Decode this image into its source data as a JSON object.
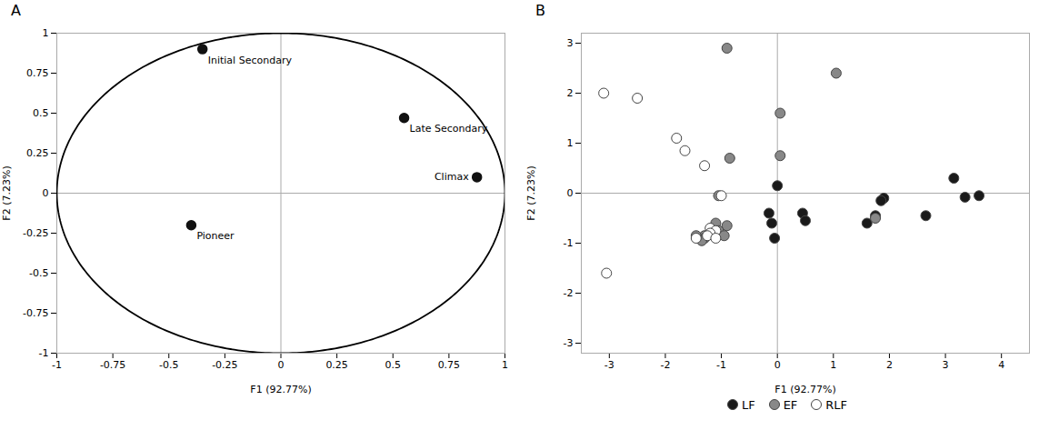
{
  "chart_data": [
    {
      "type": "correlation",
      "title": "A",
      "xlabel": "F1 (92.77%)",
      "ylabel": "F2 (7.23%)",
      "xlim": [
        -1,
        1
      ],
      "ylim": [
        -1,
        1
      ],
      "xticks": [
        -1,
        -0.75,
        -0.5,
        -0.25,
        0,
        0.25,
        0.5,
        0.75,
        1
      ],
      "yticks": [
        -1,
        -0.75,
        -0.5,
        -0.25,
        0,
        0.25,
        0.5,
        0.75,
        1
      ],
      "x": [
        -0.35,
        0.55,
        0.875,
        -0.4
      ],
      "values": [
        0.9,
        0.47,
        0.1,
        -0.2
      ],
      "labels": [
        "Initial Secondary",
        "Late Secondary",
        "Climax",
        "Pioneer"
      ],
      "color": "#111111",
      "grid": false
    },
    {
      "type": "scatter",
      "title": "B",
      "xlabel": "F1 (92.77%)",
      "ylabel": "F2 (7.23%)",
      "xlim": [
        -3.5,
        4.5
      ],
      "ylim": [
        -3.2,
        3.2
      ],
      "xticks": [
        -3,
        -2,
        -1,
        0,
        1,
        2,
        3,
        4
      ],
      "yticks": [
        -3,
        -2,
        -1,
        0,
        1,
        2,
        3
      ],
      "series": [
        {
          "name": "LF",
          "color": "#1a1a1a",
          "x": [
            0.0,
            3.15,
            3.35,
            3.6,
            1.9,
            1.85,
            1.75,
            2.65,
            1.6,
            -0.15,
            -0.1,
            -0.05,
            0.45,
            0.5
          ],
          "values": [
            0.15,
            0.3,
            -0.08,
            -0.05,
            -0.1,
            -0.15,
            -0.45,
            -0.45,
            -0.6,
            -0.4,
            -0.6,
            -0.9,
            -0.4,
            -0.55
          ]
        },
        {
          "name": "EF",
          "color": "#888888",
          "x": [
            -0.9,
            0.05,
            -0.85,
            -1.05,
            -1.1,
            -0.9,
            -1.05,
            -1.15,
            -0.95,
            -1.3,
            -1.45,
            -1.3,
            -1.35,
            1.75,
            1.05,
            0.05
          ],
          "values": [
            2.9,
            1.6,
            0.7,
            -0.05,
            -0.6,
            -0.65,
            -0.75,
            -0.8,
            -0.85,
            -0.85,
            -0.85,
            -0.9,
            -0.95,
            -0.5,
            2.4,
            0.75
          ]
        },
        {
          "name": "RLF",
          "color": "#ffffff",
          "x": [
            -3.1,
            -2.5,
            -1.8,
            -1.65,
            -1.3,
            -1.0,
            -1.2,
            -1.1,
            -1.2,
            -1.25,
            -1.1,
            -3.05,
            -1.45
          ],
          "values": [
            2.0,
            1.9,
            1.1,
            0.85,
            0.55,
            -0.05,
            -0.7,
            -0.75,
            -0.8,
            -0.85,
            -0.9,
            -1.6,
            -0.9
          ]
        }
      ],
      "legend": "bottom",
      "grid": false
    }
  ]
}
